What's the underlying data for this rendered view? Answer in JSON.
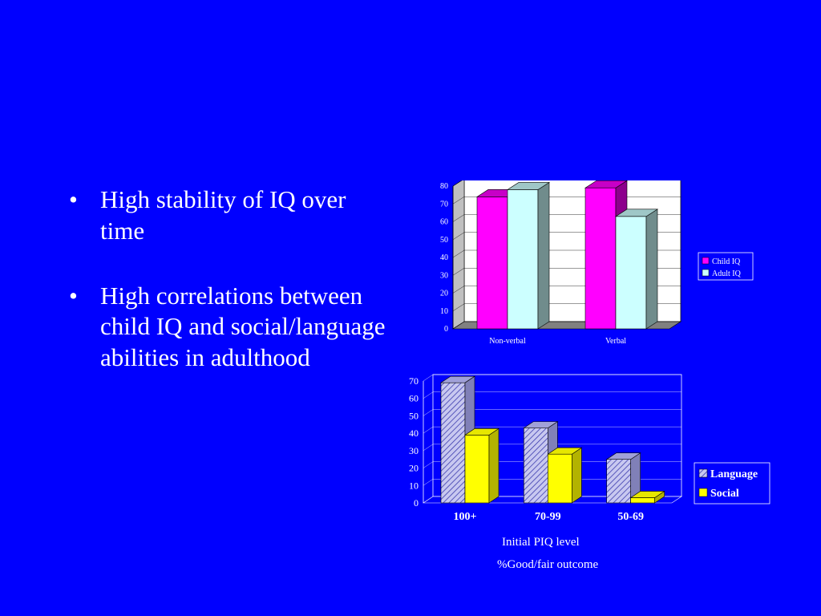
{
  "bullets": [
    "High stability of IQ over time",
    "High correlations between child IQ and social/language abilities in adulthood"
  ],
  "chart_data": [
    {
      "type": "bar",
      "categories": [
        "Non-verbal",
        "Verbal"
      ],
      "series": [
        {
          "name": "Child IQ",
          "values": [
            74,
            79
          ],
          "color": "#ff00ff"
        },
        {
          "name": "Adult IQ",
          "values": [
            78,
            63
          ],
          "color": "#ccffff"
        }
      ],
      "ylim": [
        0,
        80
      ],
      "yticks": [
        0,
        10,
        20,
        30,
        40,
        50,
        60,
        70,
        80
      ],
      "legend": "right",
      "grid": true,
      "background": "#ffffff"
    },
    {
      "type": "bar",
      "categories": [
        "100+",
        "70-99",
        "50-69"
      ],
      "series": [
        {
          "name": "Language",
          "values": [
            69,
            43,
            25
          ],
          "color": "#c8c8f0"
        },
        {
          "name": "Social",
          "values": [
            39,
            28,
            3
          ],
          "color": "#ffff00"
        }
      ],
      "ylim": [
        0,
        70
      ],
      "yticks": [
        0,
        10,
        20,
        30,
        40,
        50,
        60,
        70
      ],
      "xlabel": "Initial PIQ level",
      "caption": "%Good/fair outcome",
      "legend": "right",
      "grid": true,
      "background": "#0000ff"
    }
  ]
}
